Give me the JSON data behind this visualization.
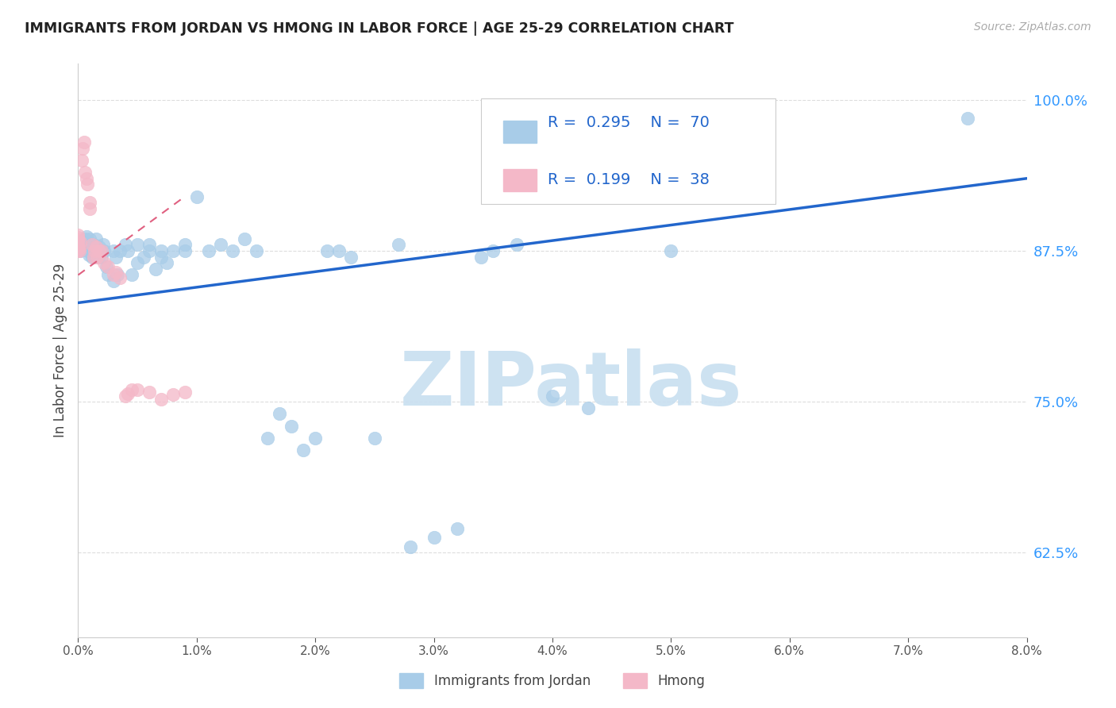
{
  "title": "IMMIGRANTS FROM JORDAN VS HMONG IN LABOR FORCE | AGE 25-29 CORRELATION CHART",
  "source": "Source: ZipAtlas.com",
  "ylabel": "In Labor Force | Age 25-29",
  "ylabel_right_ticks": [
    0.625,
    0.75,
    0.875,
    1.0
  ],
  "ylabel_right_labels": [
    "62.5%",
    "75.0%",
    "87.5%",
    "100.0%"
  ],
  "xlim": [
    0.0,
    0.08
  ],
  "ylim": [
    0.555,
    1.03
  ],
  "jordan_R": 0.295,
  "jordan_N": 70,
  "hmong_R": 0.199,
  "hmong_N": 38,
  "jordan_color": "#a8cce8",
  "hmong_color": "#f4b8c8",
  "jordan_line_color": "#2266cc",
  "hmong_line_color": "#e06080",
  "watermark_color": "#c8dff0",
  "jordan_line_x0": 0.0,
  "jordan_line_y0": 0.832,
  "jordan_line_x1": 0.08,
  "jordan_line_y1": 0.935,
  "hmong_line_x0": 0.0,
  "hmong_line_y0": 0.855,
  "hmong_line_x1": 0.009,
  "hmong_line_y1": 0.92,
  "jordan_x": [
    0.0002,
    0.0003,
    0.0004,
    0.0005,
    0.0006,
    0.0007,
    0.0008,
    0.0009,
    0.001,
    0.001,
    0.0011,
    0.0012,
    0.0013,
    0.0014,
    0.0015,
    0.0016,
    0.0017,
    0.0018,
    0.002,
    0.002,
    0.0021,
    0.0022,
    0.0024,
    0.0025,
    0.003,
    0.003,
    0.0032,
    0.0033,
    0.0035,
    0.004,
    0.0042,
    0.0045,
    0.005,
    0.005,
    0.0055,
    0.006,
    0.006,
    0.0065,
    0.007,
    0.007,
    0.0075,
    0.008,
    0.009,
    0.009,
    0.01,
    0.011,
    0.012,
    0.013,
    0.014,
    0.015,
    0.016,
    0.017,
    0.018,
    0.019,
    0.02,
    0.021,
    0.022,
    0.023,
    0.025,
    0.027,
    0.028,
    0.03,
    0.032,
    0.034,
    0.035,
    0.037,
    0.04,
    0.043,
    0.05,
    0.075
  ],
  "jordan_y": [
    0.875,
    0.878,
    0.88,
    0.882,
    0.885,
    0.887,
    0.875,
    0.872,
    0.88,
    0.885,
    0.875,
    0.87,
    0.88,
    0.875,
    0.885,
    0.875,
    0.87,
    0.878,
    0.87,
    0.875,
    0.88,
    0.875,
    0.862,
    0.855,
    0.875,
    0.85,
    0.87,
    0.855,
    0.875,
    0.88,
    0.875,
    0.855,
    0.88,
    0.865,
    0.87,
    0.875,
    0.88,
    0.86,
    0.875,
    0.87,
    0.865,
    0.875,
    0.88,
    0.875,
    0.92,
    0.875,
    0.88,
    0.875,
    0.885,
    0.875,
    0.72,
    0.74,
    0.73,
    0.71,
    0.72,
    0.875,
    0.875,
    0.87,
    0.72,
    0.88,
    0.63,
    0.638,
    0.645,
    0.87,
    0.875,
    0.88,
    0.755,
    0.745,
    0.875,
    0.985
  ],
  "hmong_x": [
    0.0,
    0.0,
    0.0,
    0.0,
    0.0,
    0.0,
    0.0,
    0.0001,
    0.0001,
    0.0002,
    0.0003,
    0.0004,
    0.0005,
    0.0006,
    0.0007,
    0.0008,
    0.001,
    0.001,
    0.0012,
    0.0013,
    0.0014,
    0.0015,
    0.0016,
    0.0018,
    0.002,
    0.0022,
    0.0025,
    0.003,
    0.0032,
    0.0035,
    0.004,
    0.0042,
    0.0045,
    0.005,
    0.006,
    0.007,
    0.008,
    0.009
  ],
  "hmong_y": [
    0.875,
    0.877,
    0.879,
    0.882,
    0.884,
    0.886,
    0.888,
    0.875,
    0.877,
    0.882,
    0.95,
    0.96,
    0.965,
    0.94,
    0.935,
    0.93,
    0.91,
    0.915,
    0.88,
    0.87,
    0.875,
    0.878,
    0.87,
    0.875,
    0.875,
    0.865,
    0.862,
    0.855,
    0.857,
    0.853,
    0.755,
    0.757,
    0.76,
    0.76,
    0.758,
    0.752,
    0.756,
    0.758
  ]
}
